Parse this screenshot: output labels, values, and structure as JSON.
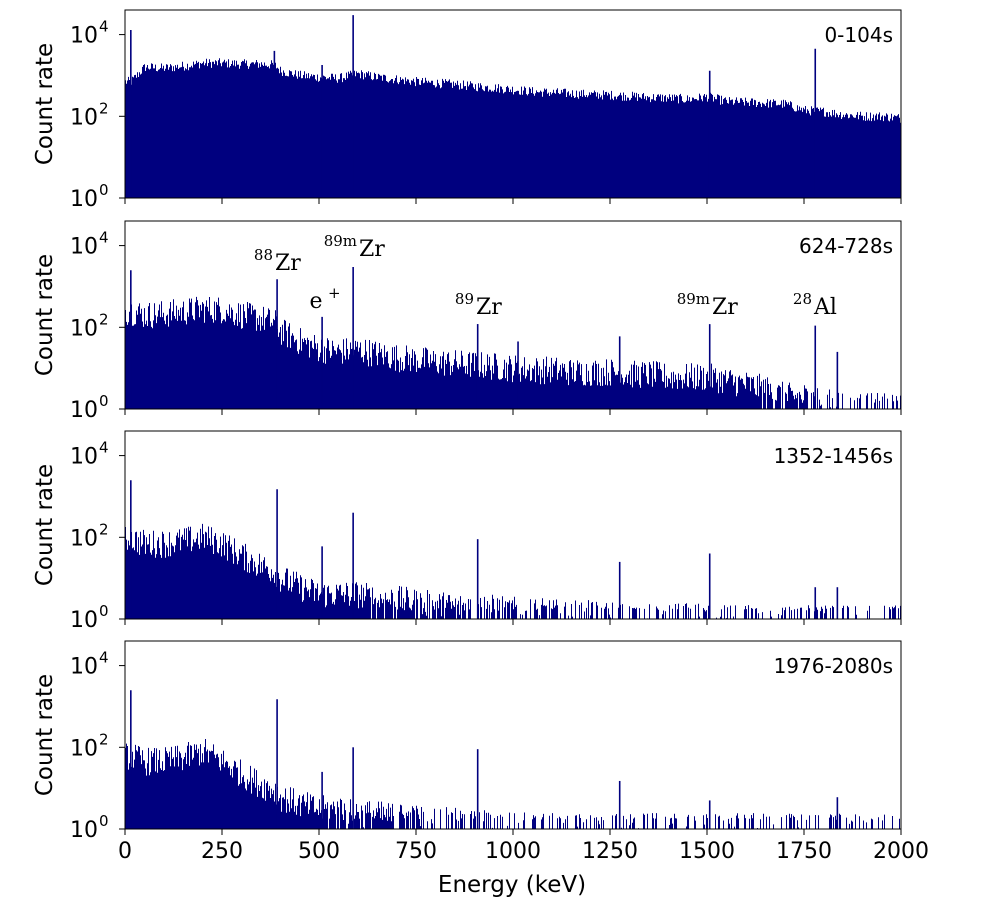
{
  "chart_data": {
    "type": "bar",
    "xlabel": "Energy (keV)",
    "ylabel": "Count rate",
    "xlim": [
      0,
      2000
    ],
    "ylim": [
      1,
      40000
    ],
    "yscale": "log",
    "xticks": [
      0,
      250,
      500,
      750,
      1000,
      1250,
      1500,
      1750,
      2000
    ],
    "yticks": [
      {
        "base": "10",
        "exp": "0",
        "value": 1
      },
      {
        "base": "10",
        "exp": "2",
        "value": 100
      },
      {
        "base": "10",
        "exp": "4",
        "value": 10000
      }
    ],
    "color": "#00007f",
    "panels": [
      {
        "label": "0-104s",
        "series": [
          {
            "x": [
              15,
              50,
              100,
              150,
              200,
              250,
              300,
              350,
              385,
              400,
              450,
              500,
              550,
              600,
              650,
              700,
              750,
              800,
              850,
              900,
              950,
              1000,
              1050,
              1100,
              1150,
              1200,
              1250,
              1300,
              1350,
              1400,
              1450,
              1500,
              1550,
              1600,
              1650,
              1700,
              1750,
              1800,
              1850,
              1900,
              1950,
              2000
            ],
            "y": [
              700,
              1600,
              1500,
              1700,
              2000,
              2000,
              1900,
              1900,
              1800,
              1300,
              1000,
              900,
              850,
              1100,
              900,
              800,
              700,
              650,
              600,
              540,
              500,
              450,
              400,
              380,
              360,
              340,
              330,
              310,
              290,
              280,
              260,
              300,
              230,
              220,
              210,
              200,
              140,
              130,
              110,
              100,
              100,
              90
            ]
          }
        ],
        "peaks": [
          {
            "x": 15,
            "y": 13000
          },
          {
            "x": 385,
            "y": 4000
          },
          {
            "x": 508,
            "y": 1800
          },
          {
            "x": 588,
            "y": 30000
          },
          {
            "x": 1507,
            "y": 1300
          },
          {
            "x": 1779,
            "y": 4500
          }
        ]
      },
      {
        "label": "624-728s",
        "series": [
          {
            "x": [
              15,
              50,
              100,
              150,
              200,
              250,
              300,
              350,
              385,
              400,
              450,
              500,
              550,
              600,
              650,
              700,
              750,
              800,
              850,
              900,
              950,
              1000,
              1050,
              1100,
              1150,
              1200,
              1250,
              1300,
              1350,
              1400,
              1450,
              1500,
              1550,
              1600,
              1650,
              1700,
              1750,
              1800,
              1850,
              1900,
              1950,
              2000
            ],
            "y": [
              250,
              200,
              210,
              240,
              280,
              270,
              200,
              160,
              130,
              80,
              45,
              30,
              25,
              28,
              22,
              18,
              16,
              14,
              13,
              12,
              11,
              10,
              9,
              9,
              8,
              8,
              8,
              7,
              7,
              6,
              6,
              6,
              5,
              4,
              3,
              2,
              2,
              1.5,
              1.3,
              1.2,
              1.1,
              1.0
            ]
          }
        ],
        "peaks": [
          {
            "x": 15,
            "y": 2500
          },
          {
            "x": 392,
            "y": 1500
          },
          {
            "x": 508,
            "y": 180
          },
          {
            "x": 588,
            "y": 3000
          },
          {
            "x": 909,
            "y": 120
          },
          {
            "x": 1013,
            "y": 45
          },
          {
            "x": 1275,
            "y": 60
          },
          {
            "x": 1507,
            "y": 120
          },
          {
            "x": 1779,
            "y": 110
          },
          {
            "x": 1836,
            "y": 25
          }
        ]
      },
      {
        "label": "1352-1456s",
        "series": [
          {
            "x": [
              15,
              50,
              100,
              150,
              200,
              250,
              300,
              350,
              385,
              400,
              450,
              500,
              550,
              600,
              650,
              700,
              750,
              800,
              850,
              900,
              950,
              1000,
              1050,
              1100,
              1150,
              1200,
              1250,
              1300,
              1350,
              1400,
              1450,
              1500,
              1550,
              1600,
              1650,
              1700,
              1750,
              1800,
              1850,
              1900,
              1950,
              2000
            ],
            "y": [
              90,
              70,
              70,
              80,
              100,
              70,
              35,
              20,
              15,
              10,
              6,
              4,
              4,
              4,
              3,
              3,
              2.5,
              2.2,
              2,
              2,
              1.8,
              1.6,
              1.5,
              1.4,
              1.3,
              1.3,
              1.2,
              1.2,
              1.1,
              1.1,
              1.1,
              1.1,
              1,
              1,
              1,
              1,
              1,
              1,
              1,
              1,
              1,
              1
            ]
          }
        ],
        "peaks": [
          {
            "x": 15,
            "y": 2500
          },
          {
            "x": 392,
            "y": 1500
          },
          {
            "x": 508,
            "y": 60
          },
          {
            "x": 588,
            "y": 400
          },
          {
            "x": 909,
            "y": 90
          },
          {
            "x": 1275,
            "y": 25
          },
          {
            "x": 1507,
            "y": 40
          },
          {
            "x": 1779,
            "y": 6
          },
          {
            "x": 1836,
            "y": 6
          }
        ]
      },
      {
        "label": "1976-2080s",
        "series": [
          {
            "x": [
              15,
              50,
              100,
              150,
              200,
              250,
              300,
              350,
              385,
              400,
              450,
              500,
              550,
              600,
              650,
              700,
              750,
              800,
              850,
              900,
              950,
              1000,
              1050,
              1100,
              1150,
              1200,
              1250,
              1300,
              1350,
              1400,
              1450,
              1500,
              1550,
              1600,
              1650,
              1700,
              1750,
              1800,
              1850,
              1900,
              1950,
              2000
            ],
            "y": [
              60,
              45,
              45,
              55,
              80,
              45,
              22,
              12,
              9,
              6,
              4,
              3,
              3,
              2.5,
              2.2,
              2,
              1.8,
              1.6,
              1.5,
              1.4,
              1.3,
              1.2,
              1.2,
              1.1,
              1.1,
              1.1,
              1.1,
              1.1,
              1.1,
              1.1,
              1.1,
              1.1,
              1.1,
              1.1,
              1.1,
              1.1,
              1.1,
              1.1,
              1.1,
              1.1,
              1.1,
              1.1
            ]
          }
        ],
        "peaks": [
          {
            "x": 15,
            "y": 2500
          },
          {
            "x": 392,
            "y": 1500
          },
          {
            "x": 508,
            "y": 25
          },
          {
            "x": 588,
            "y": 100
          },
          {
            "x": 909,
            "y": 90
          },
          {
            "x": 1275,
            "y": 15
          },
          {
            "x": 1507,
            "y": 5
          },
          {
            "x": 1836,
            "y": 6
          }
        ]
      }
    ],
    "annotations": [
      {
        "panel": 1,
        "sup": "88",
        "text": "Zr",
        "x": 392
      },
      {
        "panel": 1,
        "sup": "89m",
        "text": "Zr",
        "x": 588
      },
      {
        "panel": 1,
        "sup": "+",
        "text": "e",
        "x": 508,
        "sup_after": true
      },
      {
        "panel": 1,
        "sup": "89",
        "text": "Zr",
        "x": 909
      },
      {
        "panel": 1,
        "sup": "89m",
        "text": "Zr",
        "x": 1507
      },
      {
        "panel": 1,
        "sup": "28",
        "text": "Al",
        "x": 1779
      }
    ]
  }
}
